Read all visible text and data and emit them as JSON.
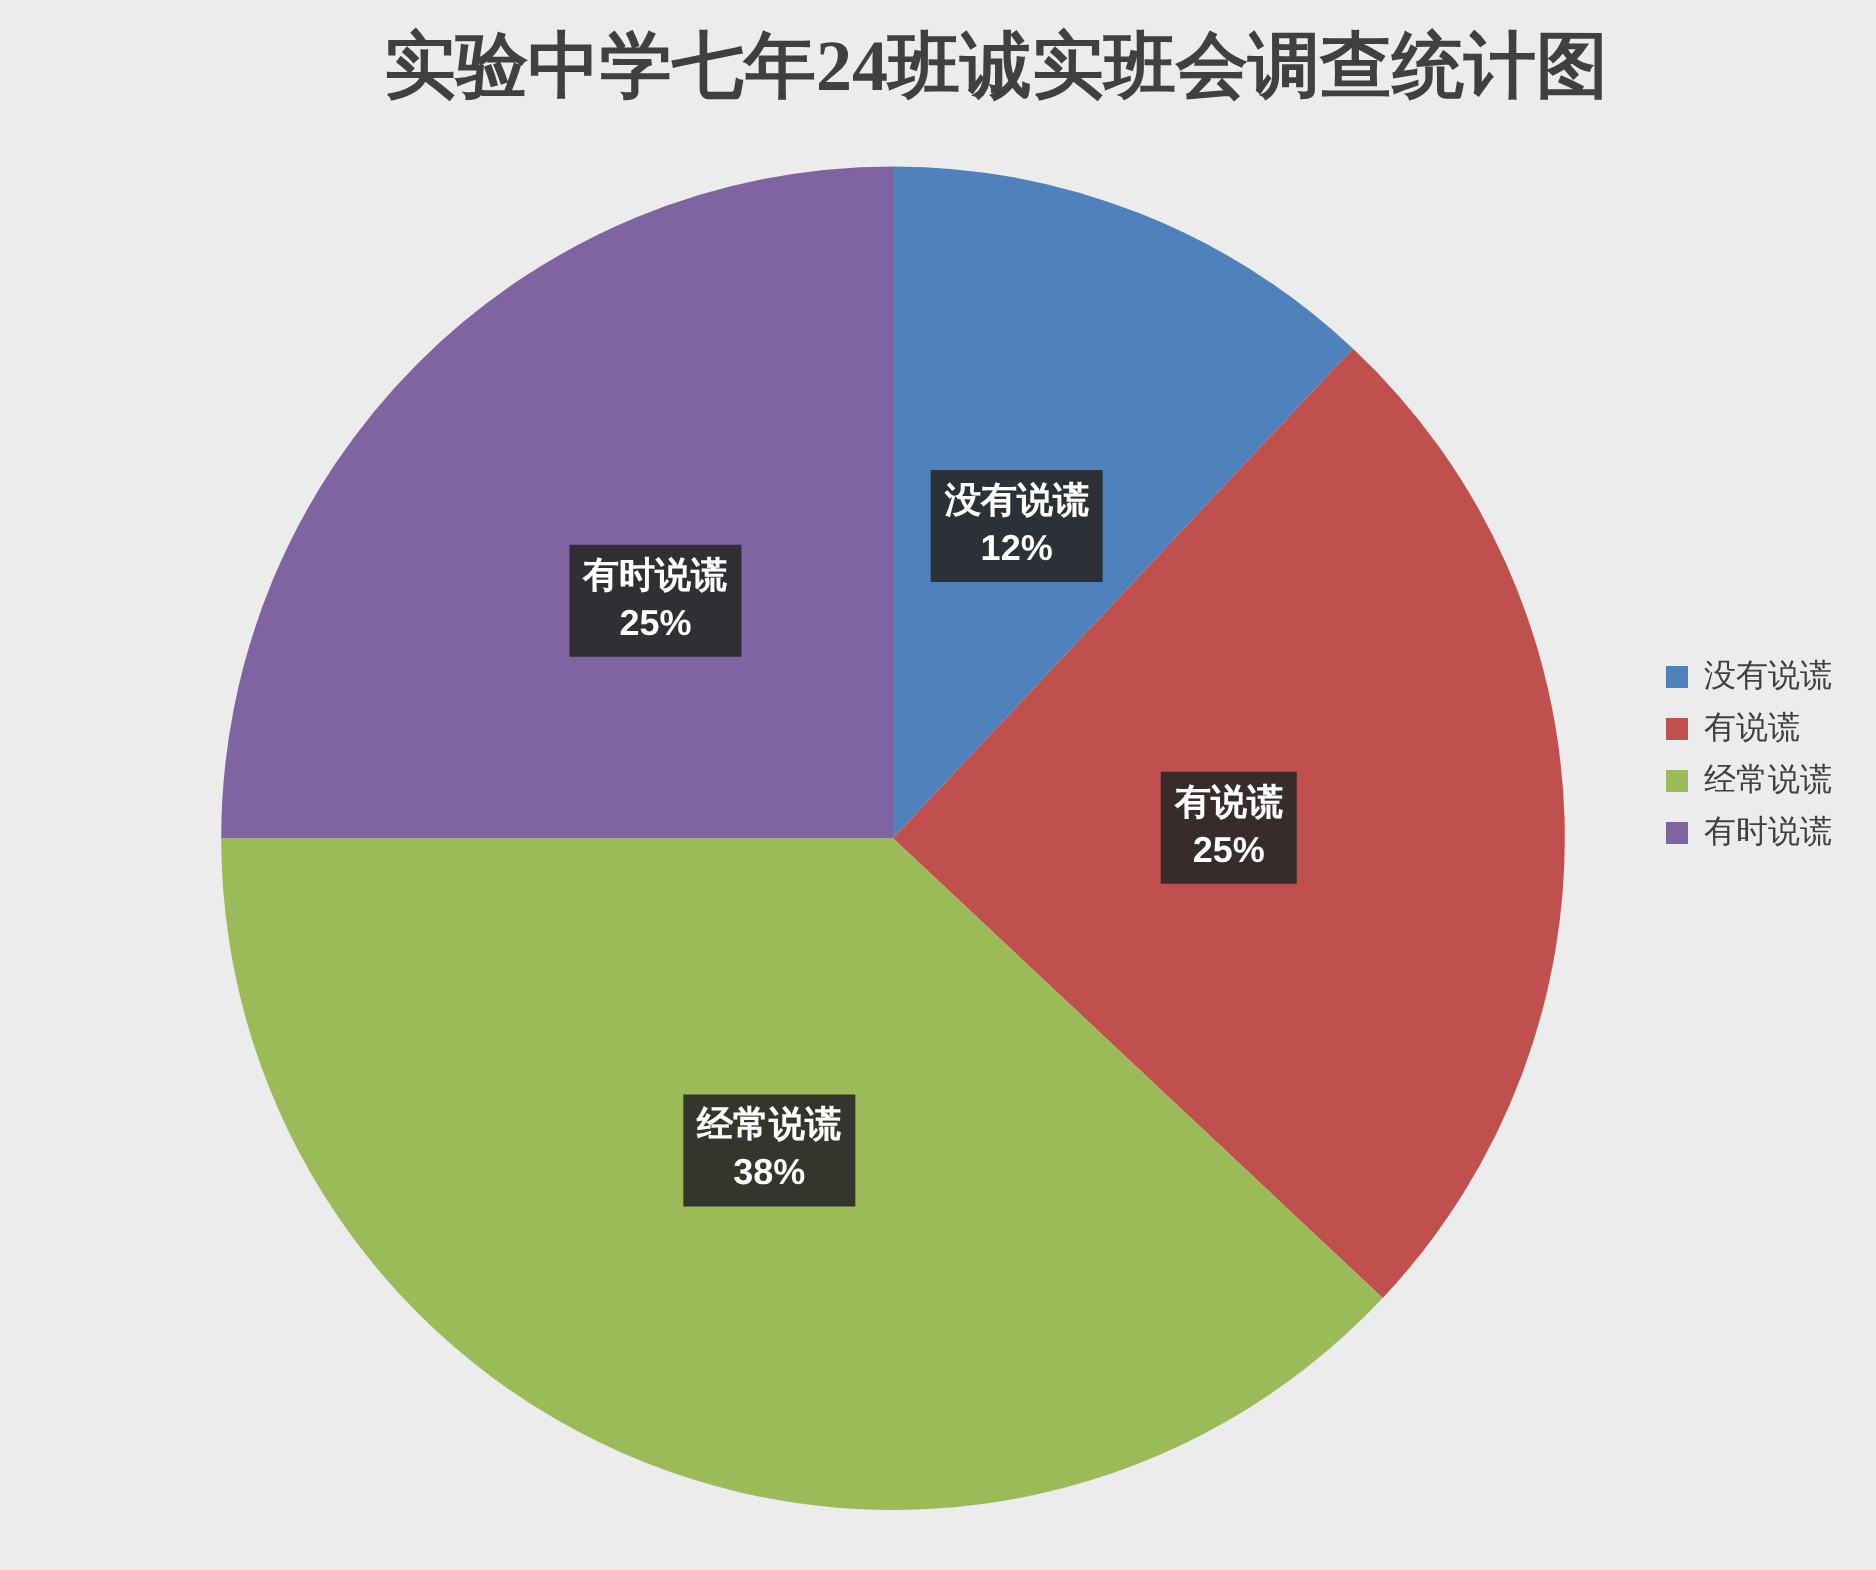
{
  "chart_data": {
    "type": "pie",
    "title": "实验中学七年24班诚实班会调查统计图",
    "categories": [
      "没有说谎",
      "有说谎",
      "经常说谎",
      "有时说谎"
    ],
    "values": [
      12,
      25,
      38,
      25
    ],
    "value_labels": [
      "12%",
      "25%",
      "38%",
      "25%"
    ],
    "colors": [
      "#4f81bd",
      "#c0504d",
      "#9bbb59",
      "#8064a2"
    ],
    "legend": "right"
  }
}
